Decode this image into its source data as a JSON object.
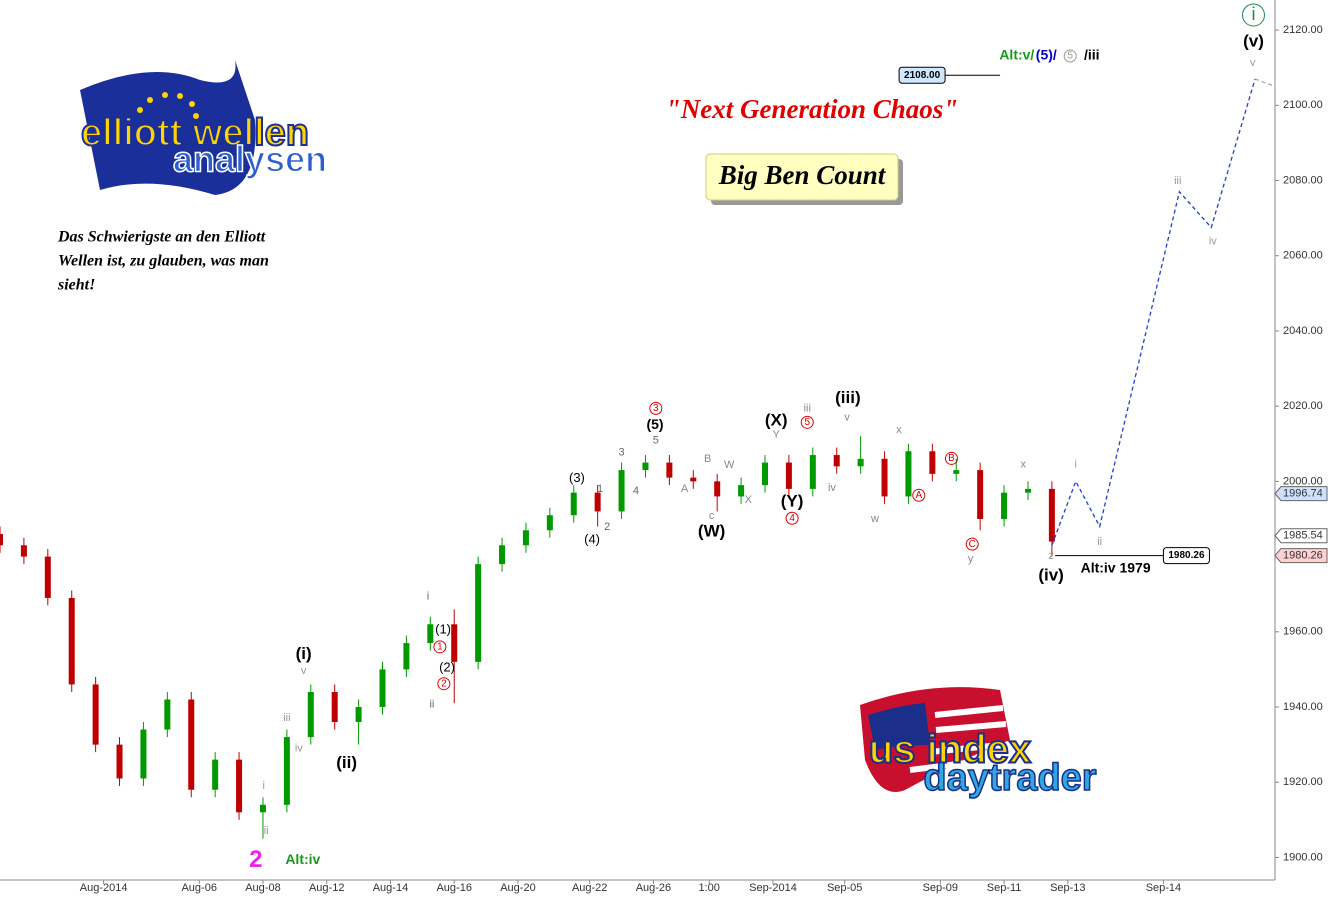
{
  "chart_data": {
    "type": "candlestick",
    "title": "\"Next Generation Chaos\"",
    "subtitle": "Big Ben Count",
    "quote": [
      "Das Schwierigste an den Elliott",
      "Wellen ist, zu glauben, was man",
      "sieht!"
    ],
    "logo_top": [
      "elliott wellen",
      "analysen"
    ],
    "logo_bottom": [
      "us index",
      "daytrader"
    ],
    "up_color": "#009a00",
    "down_color": "#c00000",
    "grid": false,
    "x": [
      0,
      3,
      6,
      9,
      12,
      15,
      18,
      21,
      24,
      27,
      30,
      33,
      36,
      39,
      42,
      45,
      48,
      51,
      54,
      57,
      60,
      63,
      66,
      69,
      72,
      75,
      78,
      81,
      84,
      87,
      90,
      93,
      96,
      99,
      102,
      105,
      108,
      111,
      114,
      117,
      120,
      123,
      126,
      129,
      132
    ],
    "open": [
      1986,
      1983,
      1980,
      1969,
      1946,
      1930,
      1921,
      1934,
      1942,
      1918,
      1926,
      1912,
      1914,
      1932,
      1944,
      1936,
      1940,
      1950,
      1957,
      1962,
      1952,
      1978,
      1983,
      1987,
      1991,
      1997,
      1992,
      2003,
      2005,
      2001,
      2000,
      1996,
      1999,
      2005,
      1998,
      2007,
      2004,
      2006,
      1996,
      2008,
      2002,
      2003,
      1990,
      1997,
      1998
    ],
    "high": [
      1988,
      1985,
      1982,
      1971,
      1948,
      1932,
      1936,
      1944,
      1944,
      1928,
      1928,
      1916,
      1934,
      1946,
      1946,
      1942,
      1952,
      1959,
      1964,
      1966,
      1980,
      1985,
      1989,
      1993,
      1999,
      1999,
      2005,
      2007,
      2007,
      2003,
      2002,
      2001,
      2007,
      2007,
      2009,
      2009,
      2012,
      2008,
      2010,
      2010,
      2006,
      2005,
      1999,
      2000,
      2000
    ],
    "low": [
      1981,
      1978,
      1967,
      1944,
      1928,
      1919,
      1919,
      1932,
      1916,
      1916,
      1910,
      1905,
      1912,
      1930,
      1934,
      1930,
      1938,
      1948,
      1955,
      1941,
      1950,
      1976,
      1981,
      1985,
      1989,
      1988,
      1990,
      2001,
      1999,
      1998,
      1992,
      1994,
      1997,
      1996,
      1996,
      2002,
      2002,
      1994,
      1994,
      2000,
      2000,
      1987,
      1988,
      1995,
      1980
    ],
    "close": [
      1983,
      1980,
      1969,
      1946,
      1930,
      1921,
      1934,
      1942,
      1918,
      1926,
      1912,
      1914,
      1932,
      1944,
      1936,
      1940,
      1950,
      1957,
      1962,
      1952,
      1978,
      1983,
      1987,
      1991,
      1997,
      1992,
      2003,
      2005,
      2001,
      2000,
      1996,
      1999,
      2005,
      1998,
      2007,
      2004,
      2006,
      1996,
      2008,
      2002,
      2003,
      1990,
      1997,
      1998,
      1984
    ],
    "projection": {
      "color": "#1f3fd6",
      "x": [
        132,
        135,
        138,
        148,
        152,
        157.5
      ],
      "values": [
        1983,
        2000,
        1988,
        2077,
        2067.5,
        2107
      ]
    },
    "projection_tail": {
      "color": "#aaaaaa",
      "x": [
        157.5,
        160
      ],
      "values": [
        2107,
        2105
      ]
    },
    "xlim": [
      0,
      160
    ],
    "ylim": [
      1894,
      2128
    ],
    "xticks": [
      {
        "value": 13,
        "label": "Aug-2014"
      },
      {
        "value": 25,
        "label": "Aug-06"
      },
      {
        "value": 33,
        "label": "Aug-08"
      },
      {
        "value": 41,
        "label": "Aug-12"
      },
      {
        "value": 49,
        "label": "Aug-14"
      },
      {
        "value": 57,
        "label": "Aug-16"
      },
      {
        "value": 65,
        "label": "Aug-20"
      },
      {
        "value": 74,
        "label": "Aug-22"
      },
      {
        "value": 82,
        "label": "Aug-26"
      },
      {
        "value": 89,
        "label": "1:00"
      },
      {
        "value": 97,
        "label": "Sep-2014"
      },
      {
        "value": 106,
        "label": "Sep-05"
      },
      {
        "value": 118,
        "label": "Sep-09"
      },
      {
        "value": 126,
        "label": "Sep-11"
      },
      {
        "value": 134,
        "label": "Sep-13"
      },
      {
        "value": 146,
        "label": "Sep-14"
      }
    ],
    "yticks": [
      {
        "value": 1900,
        "label": "1900.00"
      },
      {
        "value": 1920,
        "label": "1920.00"
      },
      {
        "value": 1940,
        "label": "1940.00"
      },
      {
        "value": 1960,
        "label": "1960.00"
      },
      {
        "value": 1980,
        "label": "1980.00"
      },
      {
        "value": 2000,
        "label": "2000.00"
      },
      {
        "value": 2020,
        "label": "2020.00"
      },
      {
        "value": 2040,
        "label": "2040.00"
      },
      {
        "value": 2060,
        "label": "2060.00"
      },
      {
        "value": 2080,
        "label": "2080.00"
      },
      {
        "value": 2100,
        "label": "2100.00"
      },
      {
        "value": 2120,
        "label": "2120.00"
      }
    ],
    "price_markers": [
      {
        "value": 1996.74,
        "color": "#cfe0ff"
      },
      {
        "value": 1985.54,
        "color": "#ffffff"
      },
      {
        "value": 1980.26,
        "color": "#ffd0d0"
      }
    ],
    "levels": [
      {
        "value": 2108,
        "label": "2108.00",
        "x": [
          118.6,
          125.5
        ],
        "color": "#cfe8ff"
      },
      {
        "value": 1980.26,
        "label": "1980.26",
        "x": [
          132.4,
          146
        ],
        "color": "#ffffff"
      }
    ],
    "annotations": [
      {
        "text": "(i)",
        "x": 38.1,
        "y": 1954,
        "color": "#000000"
      },
      {
        "text": "v",
        "x": 38.1,
        "y": 1949.6,
        "color": "#999999"
      },
      {
        "text": "iii",
        "x": 36,
        "y": 1937,
        "color": "#999999"
      },
      {
        "text": "iv",
        "x": 37.5,
        "y": 1929,
        "color": "#999999"
      },
      {
        "text": "(ii)",
        "x": 43.5,
        "y": 1925,
        "color": "#000000"
      },
      {
        "text": "i",
        "x": 33.1,
        "y": 1919,
        "color": "#999999"
      },
      {
        "text": "ii",
        "x": 33.4,
        "y": 1907,
        "color": "#999999"
      },
      {
        "text": "2",
        "x": 32.1,
        "y": 1899.2,
        "color": "#ee22ee"
      },
      {
        "text": "Alt:iv",
        "x": 38,
        "y": 1899.2,
        "color": "#1a9a1a"
      },
      {
        "text": "i",
        "x": 53.7,
        "y": 1969.3,
        "color": "#666666"
      },
      {
        "text": "ii",
        "x": 54.2,
        "y": 1940.6,
        "color": "#666666"
      },
      {
        "text": "(1)",
        "x": 55.6,
        "y": 1960.5,
        "color": "#000000"
      },
      {
        "text": "(2)",
        "x": 56.1,
        "y": 1950.4,
        "color": "#000000"
      },
      {
        "text": "1",
        "x": 55.2,
        "y": 1956,
        "color": "#dd0000",
        "circled": true
      },
      {
        "text": "2",
        "x": 55.7,
        "y": 1946.2,
        "color": "#dd0000",
        "circled": true
      },
      {
        "text": "(3)",
        "x": 72.4,
        "y": 2000.8,
        "color": "#000000"
      },
      {
        "text": "1",
        "x": 75.3,
        "y": 1997.9,
        "color": "#666666"
      },
      {
        "text": "2",
        "x": 76.2,
        "y": 1987.8,
        "color": "#666666"
      },
      {
        "text": "(4)",
        "x": 74.3,
        "y": 1984.4,
        "color": "#000000"
      },
      {
        "text": "3",
        "x": 78,
        "y": 2007.7,
        "color": "#666666"
      },
      {
        "text": "4",
        "x": 79.8,
        "y": 1997.4,
        "color": "#666666"
      },
      {
        "text": "3",
        "x": 82.3,
        "y": 2019.4,
        "color": "#dd0000",
        "circled": true
      },
      {
        "text": "(5)",
        "x": 82.2,
        "y": 2014.9,
        "color": "#000000"
      },
      {
        "text": "5",
        "x": 82.3,
        "y": 2010.9,
        "color": "#666666"
      },
      {
        "text": "B",
        "x": 88.8,
        "y": 2005.9,
        "color": "#888888"
      },
      {
        "text": "A",
        "x": 85.9,
        "y": 1997.9,
        "color": "#888888"
      },
      {
        "text": "W",
        "x": 91.5,
        "y": 2004.3,
        "color": "#888888"
      },
      {
        "text": "c",
        "x": 89.3,
        "y": 1990.7,
        "color": "#888888"
      },
      {
        "text": "(W)",
        "x": 89.3,
        "y": 1986.5,
        "color": "#000000"
      },
      {
        "text": "X",
        "x": 93.9,
        "y": 1995,
        "color": "#888888"
      },
      {
        "text": "(X)",
        "x": 97.4,
        "y": 2016,
        "color": "#000000"
      },
      {
        "text": "Y",
        "x": 97.4,
        "y": 2012.3,
        "color": "#888888"
      },
      {
        "text": "(Y)",
        "x": 99.4,
        "y": 1994.5,
        "color": "#000000"
      },
      {
        "text": "4",
        "x": 99.4,
        "y": 1990.2,
        "color": "#dd0000",
        "circled": true
      },
      {
        "text": "iii",
        "x": 101.3,
        "y": 2019.4,
        "color": "#888888"
      },
      {
        "text": "5",
        "x": 101.3,
        "y": 2015.7,
        "color": "#dd0000",
        "circled": true
      },
      {
        "text": "(iii)",
        "x": 106.4,
        "y": 2022,
        "color": "#000000"
      },
      {
        "text": "v",
        "x": 106.3,
        "y": 2017,
        "color": "#888888"
      },
      {
        "text": "iv",
        "x": 104.4,
        "y": 1998.2,
        "color": "#888888"
      },
      {
        "text": "w",
        "x": 109.8,
        "y": 1990,
        "color": "#888888"
      },
      {
        "text": "x",
        "x": 112.8,
        "y": 2013.6,
        "color": "#888888"
      },
      {
        "text": "A",
        "x": 115.3,
        "y": 1996.3,
        "color": "#dd0000",
        "circled": true
      },
      {
        "text": "B",
        "x": 119.4,
        "y": 2006.1,
        "color": "#dd0000",
        "circled": true
      },
      {
        "text": "C",
        "x": 122,
        "y": 1983.3,
        "color": "#dd0000",
        "circled": true
      },
      {
        "text": "y",
        "x": 121.8,
        "y": 1979.3,
        "color": "#888888"
      },
      {
        "text": "x",
        "x": 128.4,
        "y": 2004.4,
        "color": "#888888"
      },
      {
        "text": "z",
        "x": 131.9,
        "y": 1980.1,
        "color": "#888888"
      },
      {
        "text": "(iv)",
        "x": 131.9,
        "y": 1974.8,
        "color": "#000000"
      },
      {
        "text": "Alt:iv 1979",
        "x": 140,
        "y": 1976.7,
        "color": "#000000"
      },
      {
        "text": "i",
        "x": 135,
        "y": 2004.4,
        "color": "#999999"
      },
      {
        "text": "ii",
        "x": 138,
        "y": 1983.9,
        "color": "#999999"
      },
      {
        "text": "iii",
        "x": 147.8,
        "y": 2079.9,
        "color": "#999999"
      },
      {
        "text": "iv",
        "x": 152.2,
        "y": 2063.7,
        "color": "#999999"
      },
      {
        "text": "v",
        "x": 157.2,
        "y": 2111.2,
        "color": "#999999"
      },
      {
        "text": "(v)",
        "x": 157.3,
        "y": 2116.8,
        "color": "#000000"
      },
      {
        "text": "i",
        "x": 157.3,
        "y": 2124,
        "color": "#1a8a4a",
        "circled": true
      },
      {
        "text": "Alt:v/",
        "x": 127.6,
        "y": 2113.1,
        "color": "#1a9a1a"
      },
      {
        "text": "(5)/",
        "x": 131.3,
        "y": 2113.1,
        "color": "#0000cc"
      },
      {
        "text": "5",
        "x": 134.3,
        "y": 2113.1,
        "color": "#999999",
        "circled": true
      },
      {
        "text": "/iii",
        "x": 137,
        "y": 2113.1,
        "color": "#000000"
      }
    ]
  }
}
